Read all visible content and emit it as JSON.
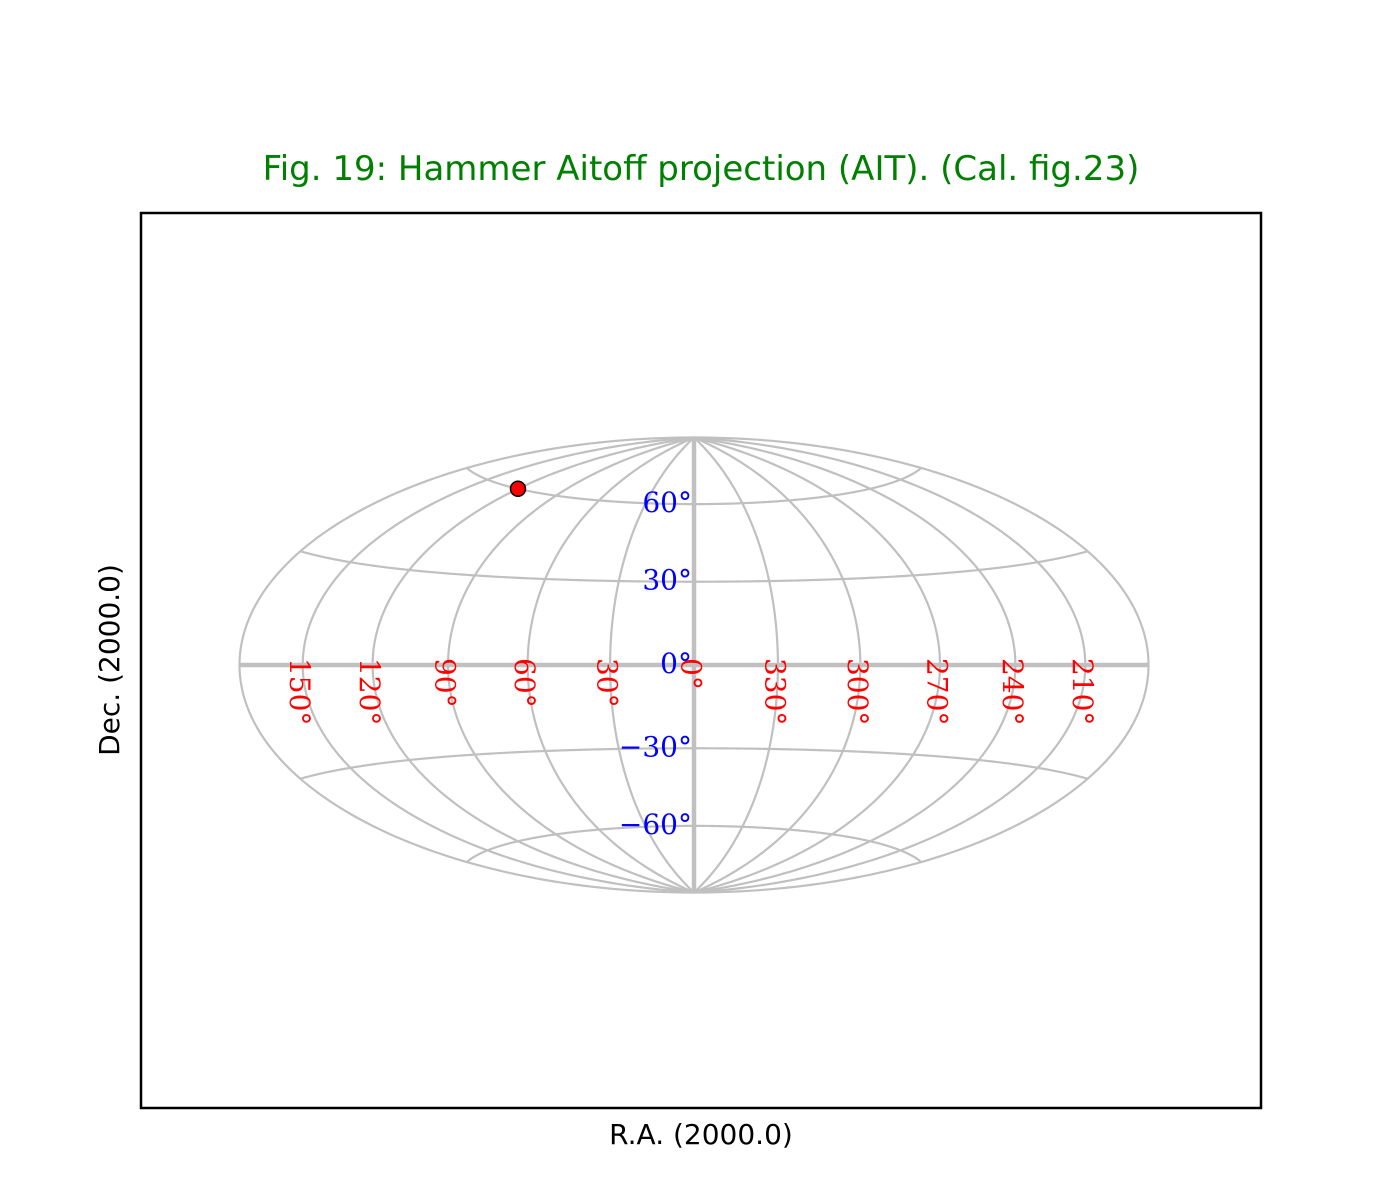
{
  "chart_data": {
    "type": "scatter",
    "projection": "Hammer Aitoff (AIT)",
    "title": "Fig. 19: Hammer Aitoff projection (AIT). (Cal. fig.23)",
    "xlabel": "R.A. (2000.0)",
    "ylabel": "Dec. (2000.0)",
    "ra_center": 0,
    "ra_range": [
      180,
      -180
    ],
    "dec_range": [
      -90,
      90
    ],
    "grid": true,
    "meridians": [
      -180,
      -150,
      -120,
      -90,
      -60,
      -30,
      0,
      30,
      60,
      90,
      120,
      150,
      180
    ],
    "parallels": [
      -90,
      -60,
      -30,
      0,
      30,
      60,
      90
    ],
    "highlight_meridian": 0,
    "highlight_parallel": 0,
    "ra_tick_labels": [
      {
        "ra": 150,
        "label": "150°"
      },
      {
        "ra": 120,
        "label": "120°"
      },
      {
        "ra": 90,
        "label": "90°"
      },
      {
        "ra": 60,
        "label": "60°"
      },
      {
        "ra": 30,
        "label": "30°"
      },
      {
        "ra": 0,
        "label": "0°"
      },
      {
        "ra": -30,
        "label": "330°"
      },
      {
        "ra": -60,
        "label": "300°"
      },
      {
        "ra": -90,
        "label": "270°"
      },
      {
        "ra": -120,
        "label": "240°"
      },
      {
        "ra": -150,
        "label": "210°"
      }
    ],
    "dec_tick_labels": [
      {
        "dec": 60,
        "label": "60°"
      },
      {
        "dec": 30,
        "label": "30°"
      },
      {
        "dec": 0,
        "label": "0°"
      },
      {
        "dec": -30,
        "label": "−30°"
      },
      {
        "dec": -60,
        "label": "−60°"
      }
    ],
    "points": [
      {
        "ra": 120,
        "dec": 60
      }
    ],
    "colors": {
      "title": "#008000",
      "grid": "#c0c0c0",
      "ra_labels": "#ff0000",
      "dec_labels": "#0000ff",
      "marker_fill": "#ff0000",
      "marker_edge": "#000000",
      "frame": "#000000"
    }
  }
}
